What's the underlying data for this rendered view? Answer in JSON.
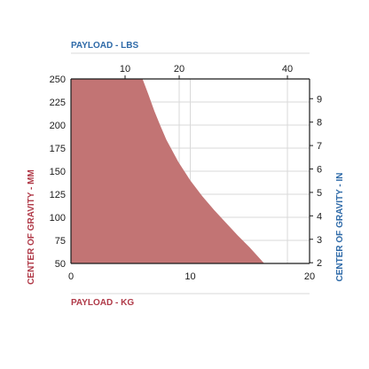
{
  "colors": {
    "fill": "#c27474",
    "kg_axis": "#b03a48",
    "lbs_axis": "#2e6aa8",
    "grid": "#d9d9d9",
    "axis_line": "#1a1a1a"
  },
  "chart_data": {
    "type": "area",
    "title": "",
    "x_primary": {
      "label": "PAYLOAD - KG",
      "range": [
        0,
        20
      ],
      "ticks": [
        0,
        10,
        20
      ]
    },
    "x_secondary": {
      "label": "PAYLOAD - LBS",
      "ticks": [
        10,
        20,
        40
      ]
    },
    "y_primary": {
      "label": "CENTER OF GRAVITY - MM",
      "range": [
        50,
        250
      ],
      "ticks": [
        50,
        75,
        100,
        125,
        150,
        175,
        200,
        225,
        250
      ]
    },
    "y_secondary": {
      "label": "CENTER OF GRAVITY - IN",
      "ticks": [
        2,
        3,
        4,
        5,
        6,
        7,
        8,
        9
      ]
    },
    "grid": true,
    "series": [
      {
        "x": [
          0,
          6.0,
          6.5,
          7.0,
          7.5,
          8.0,
          9.0,
          10.0,
          11.0,
          12.0,
          13.0,
          14.0,
          15.0,
          16.2
        ],
        "y": [
          250,
          250,
          233,
          215,
          199,
          184,
          160,
          140,
          123,
          108,
          94,
          80,
          67,
          50
        ]
      }
    ]
  }
}
